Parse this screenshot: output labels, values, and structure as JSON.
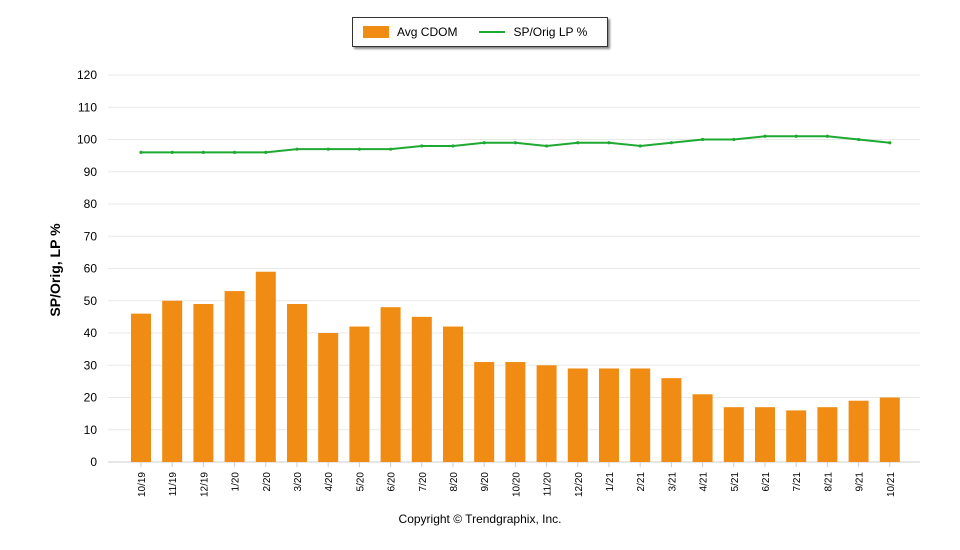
{
  "legend": {
    "items": [
      {
        "label": "Avg CDOM",
        "type": "bar",
        "color": "#F08C14"
      },
      {
        "label": "SP/Orig LP %",
        "type": "line",
        "color": "#1EAA32"
      }
    ]
  },
  "axis": {
    "ylabel": "SP/Orig, LP %",
    "yticks": [
      "0",
      "10",
      "20",
      "30",
      "40",
      "50",
      "60",
      "70",
      "80",
      "90",
      "100",
      "110",
      "120"
    ]
  },
  "footer": {
    "copyright": "Copyright © Trendgraphix, Inc."
  },
  "chart_data": {
    "type": "bar",
    "title": "",
    "xlabel": "",
    "ylabel": "SP/Orig, LP %",
    "ylim": [
      0,
      120
    ],
    "grid": true,
    "legend_position": "top",
    "categories": [
      "10/19",
      "11/19",
      "12/19",
      "1/20",
      "2/20",
      "3/20",
      "4/20",
      "5/20",
      "6/20",
      "7/20",
      "8/20",
      "9/20",
      "10/20",
      "11/20",
      "12/20",
      "1/21",
      "2/21",
      "3/21",
      "4/21",
      "5/21",
      "6/21",
      "7/21",
      "8/21",
      "9/21",
      "10/21"
    ],
    "series": [
      {
        "name": "Avg CDOM",
        "type": "bar",
        "color": "#F08C14",
        "values": [
          46,
          50,
          49,
          53,
          59,
          49,
          40,
          42,
          48,
          45,
          42,
          31,
          31,
          30,
          29,
          29,
          29,
          26,
          21,
          17,
          17,
          16,
          17,
          19,
          20
        ]
      },
      {
        "name": "SP/Orig LP %",
        "type": "line",
        "color": "#1EAA32",
        "values": [
          96,
          96,
          96,
          96,
          96,
          97,
          97,
          97,
          97,
          98,
          98,
          99,
          99,
          98,
          99,
          99,
          98,
          99,
          100,
          100,
          101,
          101,
          101,
          100,
          99
        ]
      }
    ]
  }
}
